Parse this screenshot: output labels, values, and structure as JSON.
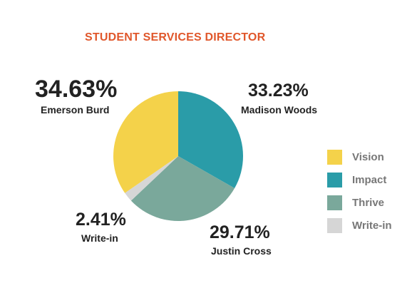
{
  "chart_data": {
    "type": "pie",
    "title": "STUDENT SERVICES DIRECTOR",
    "slices": [
      {
        "candidate": "Madison Woods",
        "party": "Impact",
        "value": 33.23,
        "label": "33.23%",
        "color": "#2a9ca8"
      },
      {
        "candidate": "Justin Cross",
        "party": "Thrive",
        "value": 29.71,
        "label": "29.71%",
        "color": "#7aa89b"
      },
      {
        "candidate": "Write-in",
        "party": "Write-in",
        "value": 2.41,
        "label": "2.41%",
        "color": "#d6d6d6"
      },
      {
        "candidate": "Emerson Burd",
        "party": "Vision",
        "value": 34.63,
        "label": "34.63%",
        "color": "#f4d24a"
      }
    ],
    "legend": [
      {
        "label": "Vision",
        "color": "#f4d24a"
      },
      {
        "label": "Impact",
        "color": "#2a9ca8"
      },
      {
        "label": "Thrive",
        "color": "#7aa89b"
      },
      {
        "label": "Write-in",
        "color": "#d6d6d6"
      }
    ],
    "legend_position": "right",
    "grid": false
  }
}
